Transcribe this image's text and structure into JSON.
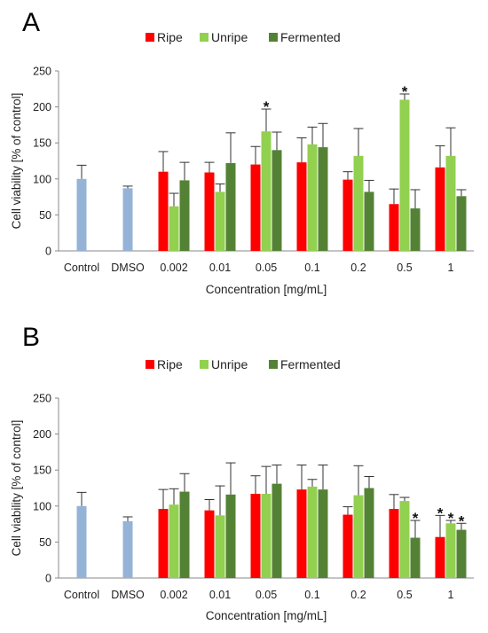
{
  "chart_data": [
    {
      "type": "bar",
      "panel": "A",
      "xlabel": "Concentration [mg/mL]",
      "ylabel": "Cell viability [% of control]",
      "ylim": [
        0,
        250
      ],
      "yticks": [
        0,
        50,
        100,
        150,
        200,
        250
      ],
      "grid": false,
      "legend_position": "top",
      "categories": [
        "Control",
        "DMSO",
        "0.002",
        "0.01",
        "0.05",
        "0.1",
        "0.2",
        "0.5",
        "1"
      ],
      "controls": [
        {
          "category": "Control",
          "value": 100,
          "error": 19,
          "color": "#95b3d7"
        },
        {
          "category": "DMSO",
          "value": 87,
          "error": 3,
          "color": "#95b3d7"
        }
      ],
      "series": [
        {
          "name": "Ripe",
          "color": "#ff0000",
          "values": [
            null,
            null,
            110,
            109,
            120,
            123,
            99,
            65,
            116
          ],
          "errors": [
            null,
            null,
            28,
            14,
            25,
            34,
            11,
            21,
            30
          ]
        },
        {
          "name": "Unripe",
          "color": "#92d050",
          "values": [
            null,
            null,
            62,
            82,
            166,
            148,
            132,
            210,
            132
          ],
          "errors": [
            null,
            null,
            18,
            11,
            31,
            24,
            38,
            8,
            39
          ]
        },
        {
          "name": "Fermented",
          "color": "#548235",
          "values": [
            null,
            null,
            98,
            122,
            140,
            144,
            82,
            59,
            76
          ],
          "errors": [
            null,
            null,
            25,
            42,
            25,
            33,
            16,
            26,
            9
          ]
        }
      ],
      "annotations": [
        {
          "text": "*",
          "category": "0.05",
          "series": "Unripe"
        },
        {
          "text": "*",
          "category": "0.5",
          "series": "Unripe"
        }
      ]
    },
    {
      "type": "bar",
      "panel": "B",
      "xlabel": "Concentration [mg/mL]",
      "ylabel": "Cell viability [% of control]",
      "ylim": [
        0,
        250
      ],
      "yticks": [
        0,
        50,
        100,
        150,
        200,
        250
      ],
      "grid": false,
      "legend_position": "top",
      "categories": [
        "Control",
        "DMSO",
        "0.002",
        "0.01",
        "0.05",
        "0.1",
        "0.2",
        "0.5",
        "1"
      ],
      "controls": [
        {
          "category": "Control",
          "value": 100,
          "error": 19,
          "color": "#95b3d7"
        },
        {
          "category": "DMSO",
          "value": 79,
          "error": 6,
          "color": "#95b3d7"
        }
      ],
      "series": [
        {
          "name": "Ripe",
          "color": "#ff0000",
          "values": [
            null,
            null,
            96,
            94,
            117,
            123,
            88,
            96,
            57
          ],
          "errors": [
            null,
            null,
            27,
            15,
            25,
            34,
            11,
            20,
            30
          ]
        },
        {
          "name": "Unripe",
          "color": "#92d050",
          "values": [
            null,
            null,
            102,
            87,
            117,
            127,
            115,
            107,
            76
          ],
          "errors": [
            null,
            null,
            22,
            41,
            38,
            10,
            41,
            5,
            4
          ]
        },
        {
          "name": "Fermented",
          "color": "#548235",
          "values": [
            null,
            null,
            120,
            116,
            131,
            123,
            125,
            56,
            67
          ],
          "errors": [
            null,
            null,
            25,
            44,
            26,
            34,
            16,
            24,
            9
          ]
        }
      ],
      "annotations": [
        {
          "text": "*",
          "category": "0.5",
          "series": "Fermented"
        },
        {
          "text": "*",
          "category": "1",
          "series": "Ripe"
        },
        {
          "text": "*",
          "category": "1",
          "series": "Unripe"
        },
        {
          "text": "*",
          "category": "1",
          "series": "Fermented"
        }
      ]
    }
  ]
}
